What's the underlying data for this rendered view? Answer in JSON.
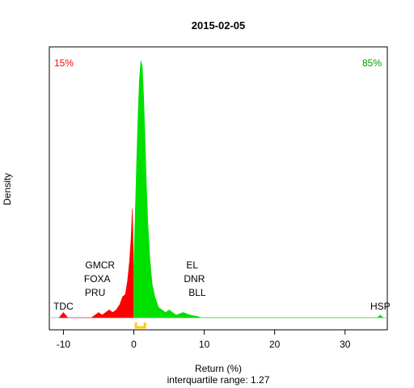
{
  "chart_data": {
    "type": "area",
    "title": "2015-02-05",
    "xlabel": "Return (%)",
    "ylabel": "Density",
    "subtitle": "interquartile range: 1.27",
    "xlim": [
      -12,
      36
    ],
    "xticks": [
      -10,
      0,
      10,
      20,
      30
    ],
    "ylim": [
      0,
      1
    ],
    "grid": false,
    "split_at": 0,
    "negative_pct": "15%",
    "positive_pct": "85%",
    "colors": {
      "negative": "#ff0000",
      "positive": "#00e000",
      "iqr": "#ffcc00",
      "baseline": "#bebebe"
    },
    "iqr": [
      0.3,
      1.57
    ],
    "density": {
      "x": [
        -10.6,
        -10.3,
        -10.0,
        -9.7,
        -9.4,
        -6.0,
        -5.5,
        -5.0,
        -4.5,
        -4.0,
        -3.5,
        -3.0,
        -2.5,
        -2.0,
        -1.6,
        -1.2,
        -0.9,
        -0.6,
        -0.4,
        -0.2,
        -0.05,
        0.05,
        0.2,
        0.4,
        0.6,
        0.8,
        1.0,
        1.2,
        1.4,
        1.6,
        1.8,
        2.0,
        2.3,
        2.6,
        3.0,
        3.5,
        4.0,
        4.5,
        5.0,
        5.5,
        6.0,
        7.0,
        8.0,
        9.0,
        9.6,
        34.6,
        35.0,
        35.4
      ],
      "y": [
        0,
        0.01,
        0.02,
        0.01,
        0,
        0,
        0.01,
        0.02,
        0.01,
        0.02,
        0.03,
        0.02,
        0.03,
        0.05,
        0.08,
        0.09,
        0.14,
        0.22,
        0.3,
        0.42,
        0.2,
        0.25,
        0.4,
        0.6,
        0.78,
        0.92,
        0.99,
        0.97,
        0.85,
        0.68,
        0.5,
        0.36,
        0.22,
        0.13,
        0.08,
        0.04,
        0.03,
        0.02,
        0.03,
        0.02,
        0.01,
        0.02,
        0.01,
        0.005,
        0,
        0,
        0.01,
        0
      ],
      "peak_density": 1
    },
    "annotations": [
      {
        "text": "TDC",
        "x": -10,
        "level": 0
      },
      {
        "text": "PRU",
        "x": -5.5,
        "level": 1
      },
      {
        "text": "FOXA",
        "x": -5.2,
        "level": 2
      },
      {
        "text": "GMCR",
        "x": -4.8,
        "level": 3
      },
      {
        "text": "BLL",
        "x": 9,
        "level": 1
      },
      {
        "text": "DNR",
        "x": 8.6,
        "level": 2
      },
      {
        "text": "EL",
        "x": 8.3,
        "level": 3
      },
      {
        "text": "HSP",
        "x": 35,
        "level": 0
      }
    ]
  }
}
